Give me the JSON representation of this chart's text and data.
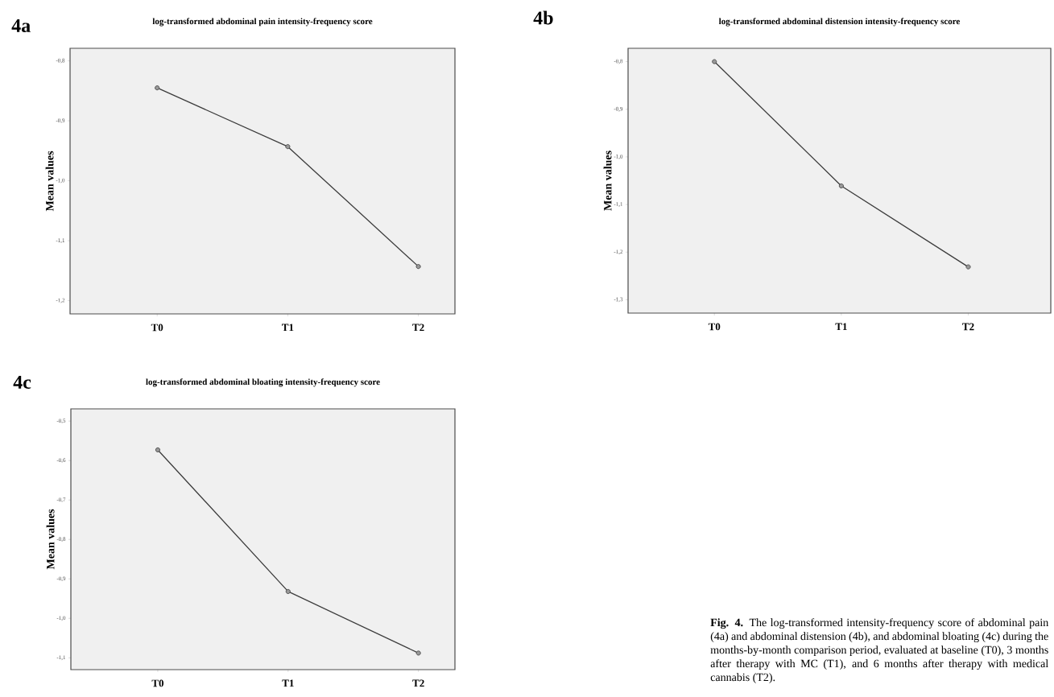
{
  "chart_data": [
    {
      "type": "line",
      "title": "log-transformed abdominal pain intensity-frequency score",
      "ylabel": "Mean values",
      "categories": [
        "T0",
        "T1",
        "T2"
      ],
      "series": [
        {
          "color": "#3c3c3c",
          "values": [
            -0.845,
            -0.943,
            -1.143
          ]
        }
      ],
      "ylim": [
        -1.222,
        -0.779
      ],
      "yticks": [
        {
          "value": -0.8,
          "label": "-0,8"
        },
        {
          "value": -0.9,
          "label": "-0,9"
        },
        {
          "value": -1.0,
          "label": "-1,0"
        },
        {
          "value": -1.1,
          "label": "-1,1"
        },
        {
          "value": -1.2,
          "label": "-1,2"
        }
      ],
      "marker": "circle",
      "line_style": "solid",
      "annotations": [
        "4a"
      ]
    },
    {
      "type": "line",
      "title": "log-transformed abdominal distension intensity-frequency score",
      "ylabel": "Mean values",
      "categories": [
        "T0",
        "T1",
        "T2"
      ],
      "series": [
        {
          "color": "#3c3c3c",
          "values": [
            -0.8,
            -1.061,
            -1.231
          ]
        }
      ],
      "ylim": [
        -1.328,
        -0.772
      ],
      "yticks": [
        {
          "value": -0.8,
          "label": "-0,8"
        },
        {
          "value": -0.9,
          "label": "-0,9"
        },
        {
          "value": -1.0,
          "label": "-1,0"
        },
        {
          "value": -1.1,
          "label": "-1,1"
        },
        {
          "value": -1.2,
          "label": "-1,2"
        },
        {
          "value": -1.3,
          "label": "-1,3"
        }
      ],
      "marker": "circle",
      "line_style": "solid",
      "annotations": [
        "4b"
      ]
    },
    {
      "type": "line",
      "title": "log-transformed abdominal bloating intensity-frequency score",
      "ylabel": "Mean values",
      "categories": [
        "T0",
        "T1",
        "T2"
      ],
      "series": [
        {
          "color": "#3c3c3c",
          "values": [
            -0.573,
            -0.932,
            -1.088
          ]
        }
      ],
      "ylim": [
        -1.13,
        -0.469
      ],
      "yticks": [
        {
          "value": -0.5,
          "label": "-0,5"
        },
        {
          "value": -0.6,
          "label": "-0,6"
        },
        {
          "value": -0.7,
          "label": "-0,7"
        },
        {
          "value": -0.8,
          "label": "-0,8"
        },
        {
          "value": -0.9,
          "label": "-0,9"
        },
        {
          "value": -1.0,
          "label": "-1,0"
        },
        {
          "value": -1.1,
          "label": "-1,1"
        }
      ],
      "marker": "circle",
      "line_style": "solid",
      "annotations": [
        "4c",
        "**Fig. 4.** The log-transformed intensity-frequency score of abdominal pain (4a) and abdominal distension (4b), and abdominal bloating (4c) during the months-by-month comparison period, evaluated at baseline (T0), 3 months after therapy with MC (T1), and 6 months after therapy with medical cannabis (T2)."
      ]
    }
  ]
}
